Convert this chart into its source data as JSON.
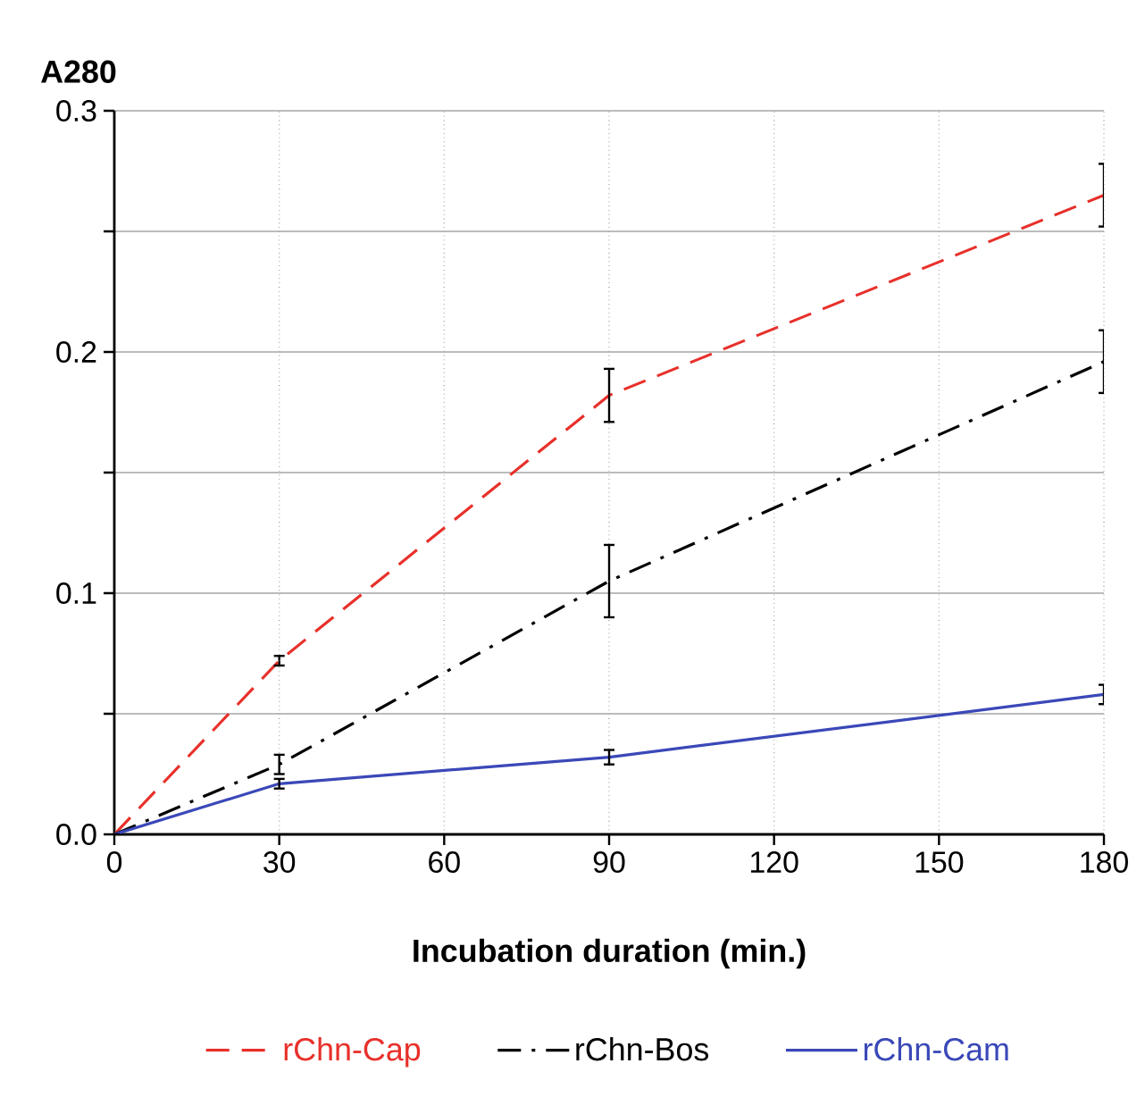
{
  "chart_data": {
    "type": "line",
    "ylabel": "A280",
    "xlabel": "Incubation duration (min.)",
    "x": [
      0,
      30,
      90,
      180
    ],
    "series": [
      {
        "name": "rChn-Cap",
        "color": "#e8302a",
        "line_style": "dashed",
        "values": [
          0,
          0.072,
          0.182,
          0.265
        ],
        "errors": [
          null,
          0.002,
          0.011,
          0.013
        ]
      },
      {
        "name": "rChn-Bos",
        "color": "#000000",
        "line_style": "dashdot",
        "values": [
          0,
          0.029,
          0.105,
          0.196
        ],
        "errors": [
          null,
          0.004,
          0.015,
          0.013
        ]
      },
      {
        "name": "rChn-Cam",
        "color": "#3a48b8",
        "line_style": "solid",
        "values": [
          0,
          0.021,
          0.032,
          0.058
        ],
        "errors": [
          null,
          0.002,
          0.003,
          0.004
        ]
      }
    ],
    "xlim": [
      0,
      180
    ],
    "xticks": [
      0,
      30,
      60,
      90,
      120,
      150,
      180
    ],
    "ylim": [
      0,
      0.3
    ],
    "yticks": [
      {
        "value": 0,
        "label": "0.0"
      },
      {
        "value": 0.05,
        "label": null
      },
      {
        "value": 0.1,
        "label": "0.1"
      },
      {
        "value": 0.15,
        "label": null
      },
      {
        "value": 0.2,
        "label": "0.2"
      },
      {
        "value": 0.25,
        "label": null
      },
      {
        "value": 0.3,
        "label": "0.3"
      }
    ],
    "grid": true,
    "legend": "bottom",
    "marker": "none"
  }
}
